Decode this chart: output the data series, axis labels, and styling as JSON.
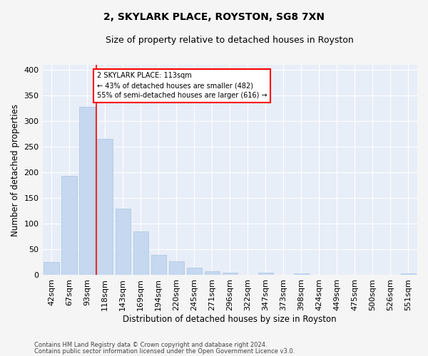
{
  "title1": "2, SKYLARK PLACE, ROYSTON, SG8 7XN",
  "title2": "Size of property relative to detached houses in Royston",
  "xlabel": "Distribution of detached houses by size in Royston",
  "ylabel": "Number of detached properties",
  "categories": [
    "42sqm",
    "67sqm",
    "93sqm",
    "118sqm",
    "143sqm",
    "169sqm",
    "194sqm",
    "220sqm",
    "245sqm",
    "271sqm",
    "296sqm",
    "322sqm",
    "347sqm",
    "373sqm",
    "398sqm",
    "424sqm",
    "449sqm",
    "475sqm",
    "500sqm",
    "526sqm",
    "551sqm"
  ],
  "values": [
    25,
    193,
    328,
    265,
    130,
    85,
    40,
    27,
    15,
    8,
    5,
    0,
    5,
    0,
    3,
    0,
    0,
    0,
    0,
    0,
    3
  ],
  "bar_color": "#c5d8f0",
  "bar_edge_color": "#a8c4e0",
  "bg_color": "#e8eef8",
  "grid_color": "#ffffff",
  "red_line_x": 2.5,
  "annotation_line1": "2 SKYLARK PLACE: 113sqm",
  "annotation_line2": "← 43% of detached houses are smaller (482)",
  "annotation_line3": "55% of semi-detached houses are larger (616) →",
  "footer1": "Contains HM Land Registry data © Crown copyright and database right 2024.",
  "footer2": "Contains public sector information licensed under the Open Government Licence v3.0.",
  "ylim_max": 410,
  "yticks": [
    0,
    50,
    100,
    150,
    200,
    250,
    300,
    350,
    400
  ]
}
